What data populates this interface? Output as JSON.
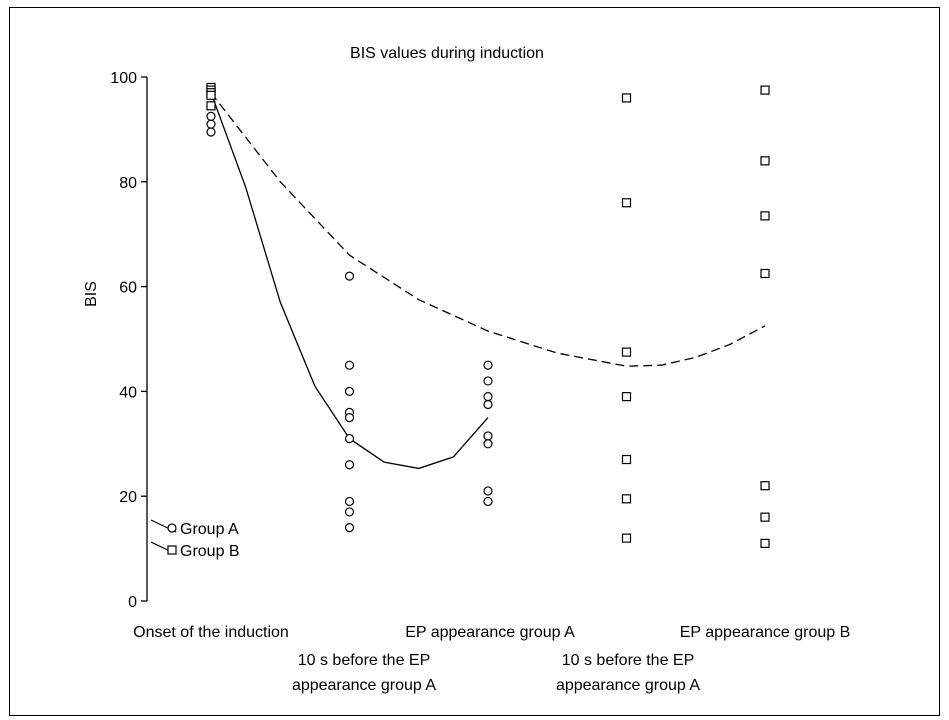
{
  "chart_data": {
    "type": "scatter",
    "title": "BIS values during induction",
    "ylabel": "BIS",
    "xlabel": "",
    "ylim": [
      0,
      100
    ],
    "yticks": [
      0,
      20,
      40,
      60,
      80,
      100
    ],
    "grid": false,
    "legend_position": "bottom-left",
    "categories": [
      {
        "lines": [
          "Onset of the induction"
        ],
        "row": 1
      },
      {
        "lines": [
          "10 s before the EP",
          "appearance group A"
        ],
        "row": 2
      },
      {
        "lines": [
          "EP appearance group A"
        ],
        "row": 1
      },
      {
        "lines": [
          "10 s before the EP",
          "appearance group A"
        ],
        "row": 2
      },
      {
        "lines": [
          "EP appearance group B"
        ],
        "row": 1
      }
    ],
    "series": [
      {
        "name": "Group A",
        "marker": "circle",
        "line": "solid",
        "points": [
          {
            "x": 0,
            "y": 89.5
          },
          {
            "x": 0,
            "y": 91
          },
          {
            "x": 0,
            "y": 92.5
          },
          {
            "x": 0,
            "y": 94.5
          },
          {
            "x": 1,
            "y": 62
          },
          {
            "x": 1,
            "y": 45
          },
          {
            "x": 1,
            "y": 40
          },
          {
            "x": 1,
            "y": 36
          },
          {
            "x": 1,
            "y": 35
          },
          {
            "x": 1,
            "y": 31
          },
          {
            "x": 1,
            "y": 26
          },
          {
            "x": 1,
            "y": 19
          },
          {
            "x": 1,
            "y": 17
          },
          {
            "x": 1,
            "y": 14
          },
          {
            "x": 2,
            "y": 45
          },
          {
            "x": 2,
            "y": 42
          },
          {
            "x": 2,
            "y": 39
          },
          {
            "x": 2,
            "y": 37.5
          },
          {
            "x": 2,
            "y": 31.5
          },
          {
            "x": 2,
            "y": 30
          },
          {
            "x": 2,
            "y": 21
          },
          {
            "x": 2,
            "y": 19
          }
        ],
        "fit": [
          {
            "x": 0,
            "y": 97
          },
          {
            "x": 0.25,
            "y": 79
          },
          {
            "x": 0.5,
            "y": 57
          },
          {
            "x": 0.75,
            "y": 41
          },
          {
            "x": 1,
            "y": 31
          },
          {
            "x": 1.25,
            "y": 26.5
          },
          {
            "x": 1.5,
            "y": 25.3
          },
          {
            "x": 1.75,
            "y": 27.5
          },
          {
            "x": 2,
            "y": 35
          }
        ]
      },
      {
        "name": "Group B",
        "marker": "square",
        "line": "dashed",
        "points": [
          {
            "x": 0,
            "y": 98
          },
          {
            "x": 0,
            "y": 97.5
          },
          {
            "x": 0,
            "y": 97
          },
          {
            "x": 0,
            "y": 96.5
          },
          {
            "x": 0,
            "y": 94.5
          },
          {
            "x": 3,
            "y": 96
          },
          {
            "x": 3,
            "y": 76
          },
          {
            "x": 3,
            "y": 47.5
          },
          {
            "x": 3,
            "y": 39
          },
          {
            "x": 3,
            "y": 27
          },
          {
            "x": 3,
            "y": 19.5
          },
          {
            "x": 3,
            "y": 12
          },
          {
            "x": 4,
            "y": 97.5
          },
          {
            "x": 4,
            "y": 84
          },
          {
            "x": 4,
            "y": 73.5
          },
          {
            "x": 4,
            "y": 62.5
          },
          {
            "x": 4,
            "y": 22
          },
          {
            "x": 4,
            "y": 16
          },
          {
            "x": 4,
            "y": 11
          }
        ],
        "fit": [
          {
            "x": 0,
            "y": 97
          },
          {
            "x": 0.5,
            "y": 80
          },
          {
            "x": 1,
            "y": 66
          },
          {
            "x": 1.5,
            "y": 57.5
          },
          {
            "x": 2,
            "y": 51.5
          },
          {
            "x": 2.5,
            "y": 47.3
          },
          {
            "x": 3,
            "y": 44.8
          },
          {
            "x": 3.25,
            "y": 45
          },
          {
            "x": 3.5,
            "y": 46.5
          },
          {
            "x": 3.75,
            "y": 49
          },
          {
            "x": 4,
            "y": 52.5
          }
        ]
      }
    ]
  }
}
